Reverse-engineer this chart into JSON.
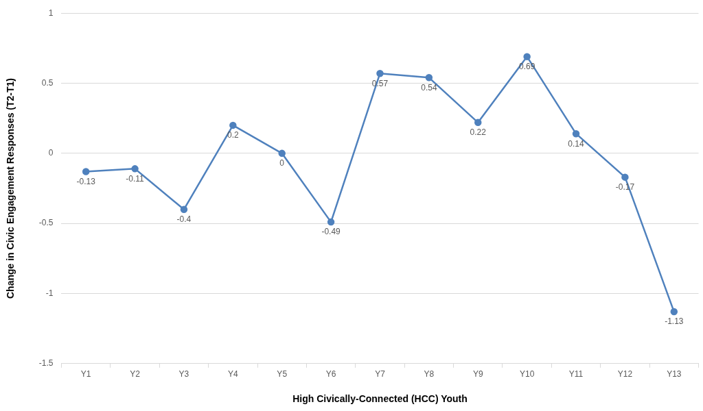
{
  "chart_data": {
    "type": "line",
    "xlabel": "High Civically-Connected (HCC) Youth",
    "ylabel": "Change in Civic Engagement Responses (T2-T1)",
    "categories": [
      "Y1",
      "Y2",
      "Y3",
      "Y4",
      "Y5",
      "Y6",
      "Y7",
      "Y8",
      "Y9",
      "Y10",
      "Y11",
      "Y12",
      "Y13"
    ],
    "series": [
      {
        "color": "#4f81bd",
        "values": [
          -0.13,
          -0.11,
          -0.4,
          0.2,
          0,
          -0.49,
          0.57,
          0.54,
          0.22,
          0.69,
          0.14,
          -0.17,
          -1.13
        ]
      }
    ],
    "ylim": [
      -1.5,
      1
    ],
    "yticks": [
      -1.5,
      -1,
      -0.5,
      0,
      0.5,
      1
    ],
    "grid": "y",
    "legend": false,
    "marker": "circle",
    "line_style": "solid",
    "data_labels": true
  }
}
